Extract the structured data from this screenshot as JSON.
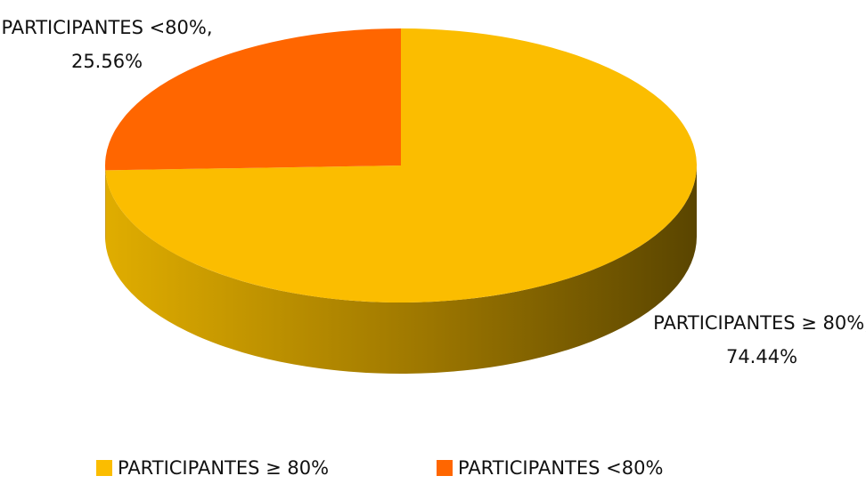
{
  "chart_data": {
    "type": "pie",
    "categories": [
      "PARTICIPANTES ≥ 80%",
      "PARTICIPANTES <80%"
    ],
    "values": [
      74.44,
      25.56
    ],
    "value_labels": [
      "PARTICIPANTES ≥ 80%, 74.44%",
      "PARTICIPANTES <80%, 25.56%"
    ],
    "colors": [
      "#fbbd00",
      "#ff6600"
    ],
    "legend": "bottom"
  }
}
